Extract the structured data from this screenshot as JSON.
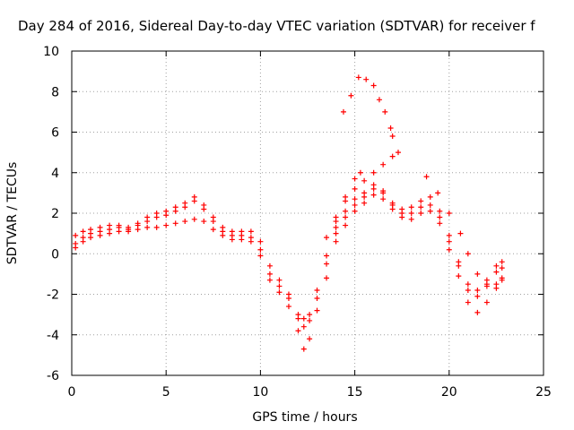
{
  "chart_data": {
    "type": "scatter",
    "title": "Day 284 of 2016, Sidereal Day-to-day VTEC variation (SDTVAR) for receiver f",
    "xlabel": "GPS time / hours",
    "ylabel": "SDTVAR / TECUs",
    "xlim": [
      0,
      25
    ],
    "ylim": [
      -6,
      10
    ],
    "xticks": [
      0,
      5,
      10,
      15,
      20,
      25
    ],
    "yticks": [
      -6,
      -4,
      -2,
      0,
      2,
      4,
      6,
      8,
      10
    ],
    "grid": true,
    "marker": "plus",
    "color": "#ff0000",
    "series": [
      {
        "x": [
          0.2,
          0.6,
          1.0,
          1.5,
          2.0,
          2.5,
          3.0,
          3.5,
          4.0,
          4.5,
          5.0,
          5.5,
          6.0,
          6.5,
          7.0,
          7.5,
          8.0,
          8.5,
          9.0,
          9.5,
          10.0,
          10.5,
          11.0,
          11.5,
          12.0,
          12.3,
          12.6,
          13.0,
          13.5,
          14.0,
          14.5,
          15.0,
          15.5,
          16.0,
          16.5,
          17.0,
          17.5,
          18.0,
          18.5,
          19.0,
          19.5,
          20.0,
          20.5,
          21.0,
          21.5,
          22.0,
          22.5,
          22.8
        ],
        "y": [
          0.5,
          0.8,
          1.0,
          1.1,
          1.2,
          1.3,
          1.2,
          1.4,
          1.6,
          1.8,
          1.9,
          2.1,
          2.3,
          2.6,
          2.2,
          1.6,
          1.1,
          0.9,
          0.9,
          0.8,
          0.2,
          -1.0,
          -1.6,
          -2.2,
          -3.2,
          -3.6,
          -3.3,
          -2.2,
          -0.5,
          1.0,
          1.8,
          2.4,
          2.8,
          3.2,
          3.0,
          2.4,
          2.0,
          2.0,
          2.3,
          2.4,
          1.8,
          0.6,
          -0.6,
          -1.8,
          -2.1,
          -1.5,
          -0.9,
          -0.7
        ]
      },
      {
        "x": [
          0.2,
          0.6,
          1.0,
          1.5,
          2.0,
          2.5,
          3.0,
          3.5,
          4.0,
          4.5,
          5.0,
          5.5,
          6.0,
          6.5,
          7.0,
          7.5,
          8.0,
          8.5,
          9.0,
          9.5,
          10.0,
          10.5,
          11.0,
          11.5,
          12.0,
          12.3,
          12.6,
          13.0,
          13.5,
          14.0,
          14.5,
          15.0,
          15.5,
          16.0,
          16.5,
          17.0,
          17.5,
          18.0,
          18.5,
          19.0,
          19.5,
          20.0,
          20.5,
          21.0,
          21.5,
          22.0,
          22.5,
          22.8
        ],
        "y": [
          0.9,
          1.1,
          1.2,
          1.3,
          1.4,
          1.4,
          1.3,
          1.5,
          1.8,
          2.0,
          2.1,
          2.3,
          2.5,
          2.8,
          2.4,
          1.8,
          1.3,
          1.1,
          1.1,
          1.1,
          0.6,
          -0.6,
          -1.3,
          -2.0,
          -3.0,
          -3.2,
          -3.0,
          -1.8,
          -0.1,
          1.3,
          2.1,
          2.7,
          3.0,
          3.4,
          3.1,
          2.5,
          2.2,
          2.3,
          2.6,
          2.8,
          2.1,
          0.9,
          -0.4,
          -1.5,
          -1.8,
          -1.3,
          -0.6,
          -0.4
        ]
      },
      {
        "x": [
          0.2,
          0.6,
          1.0,
          1.5,
          2.0,
          2.5,
          3.0,
          3.5,
          4.0,
          4.5,
          5.0,
          5.5,
          6.0,
          6.5,
          7.0,
          7.5,
          8.0,
          8.5,
          9.0,
          9.5,
          10.0,
          10.5,
          11.0,
          11.5,
          12.0,
          12.3,
          12.6,
          13.0,
          13.5,
          14.0,
          14.5,
          15.0,
          15.5,
          16.0,
          16.5,
          17.0,
          17.5,
          18.0,
          18.5,
          19.0,
          19.5,
          20.0,
          20.5,
          21.0,
          21.5,
          22.0,
          22.5,
          22.8
        ],
        "y": [
          0.3,
          0.6,
          0.8,
          0.9,
          1.0,
          1.1,
          1.1,
          1.2,
          1.3,
          1.3,
          1.4,
          1.5,
          1.6,
          1.7,
          1.6,
          1.2,
          0.9,
          0.7,
          0.7,
          0.6,
          -0.1,
          -1.3,
          -1.9,
          -2.6,
          -3.8,
          -4.7,
          -4.2,
          -2.8,
          -1.2,
          0.6,
          1.4,
          2.1,
          2.5,
          2.9,
          2.7,
          2.2,
          1.8,
          1.7,
          2.0,
          2.1,
          1.5,
          0.2,
          -1.1,
          -2.4,
          -2.9,
          -2.4,
          -1.7,
          -1.2
        ]
      },
      {
        "x": [
          13.5,
          14.0,
          14.5,
          15.0,
          15.5,
          16.0,
          16.5,
          17.0,
          17.3
        ],
        "y": [
          0.8,
          1.6,
          2.6,
          3.2,
          3.6,
          4.0,
          4.4,
          4.8,
          5.0
        ]
      },
      {
        "x": [
          14.0,
          14.5,
          15.0,
          15.3
        ],
        "y": [
          1.8,
          2.8,
          3.7,
          4.0
        ]
      },
      {
        "x": [
          14.4,
          14.8,
          15.2,
          15.6,
          16.0,
          16.3,
          16.6,
          16.9,
          17.0
        ],
        "y": [
          7.0,
          7.8,
          8.7,
          8.6,
          8.3,
          7.6,
          7.0,
          6.2,
          5.8
        ]
      },
      {
        "x": [
          18.8,
          19.4,
          20.0,
          20.6,
          21.0,
          21.5,
          22.0,
          22.5,
          22.8
        ],
        "y": [
          3.8,
          3.0,
          2.0,
          1.0,
          0.0,
          -1.0,
          -1.6,
          -1.5,
          -1.3
        ]
      }
    ]
  }
}
